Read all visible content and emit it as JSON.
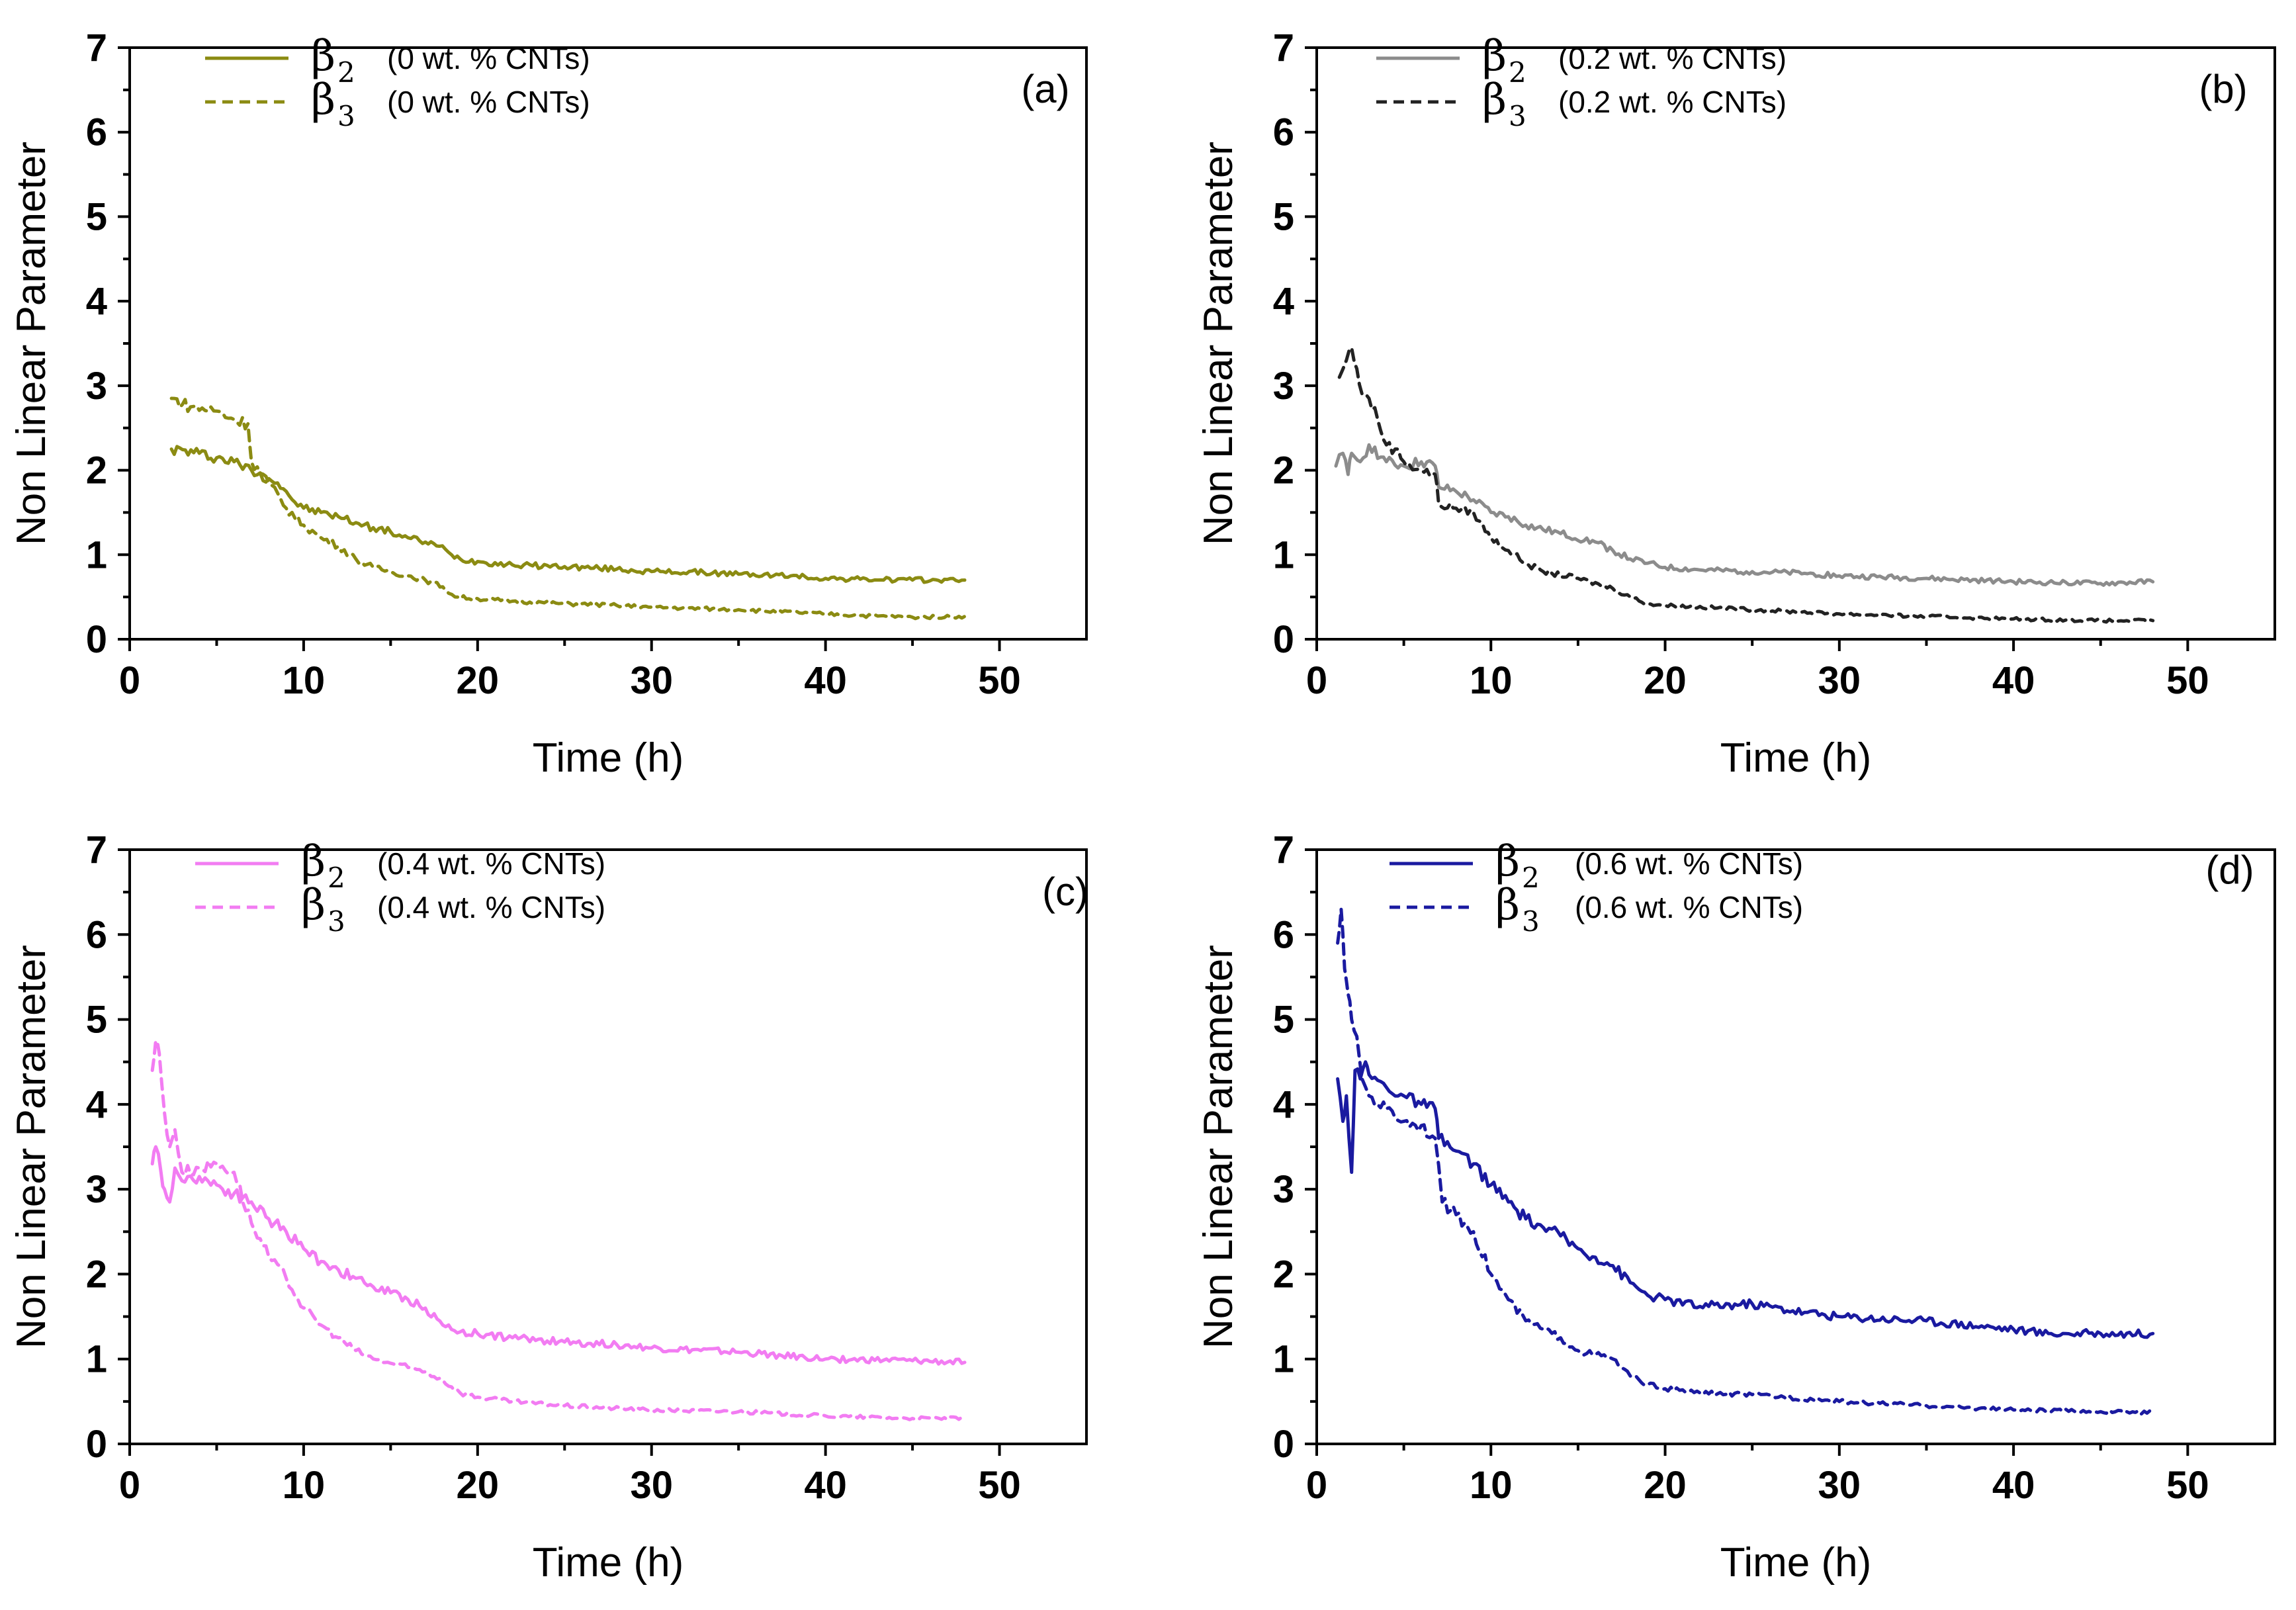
{
  "chart_data": [
    {
      "type": "line",
      "panel_label": "(a)",
      "xlabel": "Time (h)",
      "ylabel": "Non Linear Parameter",
      "xlim": [
        0,
        55
      ],
      "ylim": [
        0,
        7
      ],
      "xticks": [
        0,
        10,
        20,
        30,
        40,
        50
      ],
      "yticks": [
        0,
        1,
        2,
        3,
        4,
        5,
        6,
        7
      ],
      "xtick_labels": [
        "0",
        "10",
        "20",
        "30",
        "40",
        "50"
      ],
      "ytick_labels": [
        "0",
        "1",
        "2",
        "3",
        "4",
        "5",
        "6",
        "7"
      ],
      "color": "#8b8b12",
      "series": [
        {
          "name": "β2",
          "beta": "β",
          "sub": "2",
          "condition": "(0 wt. % CNTs)",
          "dash": "solid",
          "x": [
            2.4,
            4,
            6,
            7,
            8,
            8.5,
            9,
            9.5,
            10,
            11,
            12,
            13,
            14,
            15,
            16,
            17,
            17.8,
            18.5,
            19,
            20,
            22,
            25,
            28,
            30,
            33,
            35,
            38,
            40,
            42,
            45,
            48
          ],
          "y": [
            2.25,
            2.2,
            2.1,
            2.0,
            1.9,
            1.85,
            1.75,
            1.62,
            1.55,
            1.5,
            1.45,
            1.38,
            1.32,
            1.27,
            1.2,
            1.15,
            1.1,
            1.0,
            0.95,
            0.92,
            0.88,
            0.86,
            0.83,
            0.8,
            0.79,
            0.77,
            0.75,
            0.72,
            0.71,
            0.7,
            0.7
          ]
        },
        {
          "name": "β3",
          "beta": "β",
          "sub": "3",
          "condition": "(0 wt. % CNTs)",
          "dash": "dashed",
          "x": [
            2.4,
            3.5,
            5,
            6,
            6.8,
            7,
            8,
            9,
            10,
            11,
            12,
            13,
            14,
            15,
            16,
            17,
            18,
            18.7,
            20,
            22,
            25,
            28,
            30,
            35,
            40,
            42,
            45,
            48
          ],
          "y": [
            2.85,
            2.75,
            2.7,
            2.6,
            2.55,
            2.1,
            1.85,
            1.55,
            1.35,
            1.2,
            1.1,
            0.95,
            0.85,
            0.8,
            0.75,
            0.7,
            0.62,
            0.5,
            0.48,
            0.45,
            0.42,
            0.4,
            0.38,
            0.35,
            0.3,
            0.28,
            0.26,
            0.27
          ]
        }
      ]
    },
    {
      "type": "line",
      "panel_label": "(b)",
      "xlabel": "Time (h)",
      "ylabel": "Non Linear Parameter",
      "xlim": [
        0,
        55
      ],
      "ylim": [
        0,
        7
      ],
      "xticks": [
        0,
        10,
        20,
        30,
        40,
        50
      ],
      "yticks": [
        0,
        1,
        2,
        3,
        4,
        5,
        6,
        7
      ],
      "xtick_labels": [
        "0",
        "10",
        "20",
        "30",
        "40",
        "50"
      ],
      "ytick_labels": [
        "0",
        "1",
        "2",
        "3",
        "4",
        "5",
        "6",
        "7"
      ],
      "series": [
        {
          "name": "β2",
          "beta": "β",
          "sub": "2",
          "condition": "(0.2 wt. % CNTs)",
          "dash": "solid",
          "color": "#8c8c8c",
          "x": [
            1.1,
            1.5,
            1.8,
            2,
            2.5,
            3,
            4,
            5,
            6,
            6.8,
            7,
            8,
            9,
            10,
            11,
            12,
            14,
            16,
            17,
            18,
            19,
            20,
            22,
            25,
            28,
            30,
            35,
            40,
            42,
            45,
            48
          ],
          "y": [
            2.05,
            2.2,
            1.95,
            2.2,
            2.1,
            2.3,
            2.1,
            2.05,
            2.1,
            2.05,
            1.8,
            1.75,
            1.65,
            1.5,
            1.45,
            1.35,
            1.25,
            1.15,
            1.05,
            0.95,
            0.9,
            0.85,
            0.82,
            0.8,
            0.78,
            0.75,
            0.72,
            0.68,
            0.67,
            0.66,
            0.68
          ]
        },
        {
          "name": "β3",
          "beta": "β",
          "sub": "3",
          "condition": "(0.2 wt. % CNTs)",
          "dash": "dashed",
          "color": "#222222",
          "x": [
            1.3,
            1.7,
            2,
            2.3,
            2.6,
            3,
            3.5,
            4,
            4.5,
            5,
            6,
            6.8,
            7,
            8,
            9,
            10,
            11,
            12,
            13,
            15,
            17,
            18,
            19,
            20,
            25,
            30,
            35,
            40,
            45,
            48
          ],
          "y": [
            3.1,
            3.3,
            3.45,
            3.2,
            2.9,
            2.85,
            2.6,
            2.3,
            2.25,
            2.1,
            2.0,
            1.95,
            1.6,
            1.55,
            1.5,
            1.2,
            1.05,
            0.9,
            0.8,
            0.72,
            0.6,
            0.5,
            0.42,
            0.4,
            0.35,
            0.3,
            0.27,
            0.24,
            0.22,
            0.22
          ]
        }
      ]
    },
    {
      "type": "line",
      "panel_label": "(c)",
      "xlabel": "Time (h)",
      "ylabel": "Non Linear Parameter",
      "xlim": [
        0,
        55
      ],
      "ylim": [
        0,
        7
      ],
      "xticks": [
        0,
        10,
        20,
        30,
        40,
        50
      ],
      "yticks": [
        0,
        1,
        2,
        3,
        4,
        5,
        6,
        7
      ],
      "xtick_labels": [
        "0",
        "10",
        "20",
        "30",
        "40",
        "50"
      ],
      "ytick_labels": [
        "0",
        "1",
        "2",
        "3",
        "4",
        "5",
        "6",
        "7"
      ],
      "color": "#f27cf2",
      "series": [
        {
          "name": "β2",
          "beta": "β",
          "sub": "2",
          "condition": "(0.4 wt. % CNTs)",
          "dash": "solid",
          "x": [
            1.3,
            1.5,
            1.8,
            2,
            2.3,
            2.6,
            3,
            4,
            5,
            6,
            7,
            8,
            9,
            10,
            11,
            12,
            13,
            14,
            15,
            16,
            17,
            18,
            19,
            20,
            22,
            25,
            28,
            30,
            35,
            40,
            45,
            48
          ],
          "y": [
            3.3,
            3.5,
            3.2,
            3.0,
            2.85,
            3.25,
            3.1,
            3.15,
            3.05,
            2.95,
            2.85,
            2.65,
            2.5,
            2.3,
            2.15,
            2.05,
            1.95,
            1.85,
            1.78,
            1.7,
            1.6,
            1.4,
            1.32,
            1.3,
            1.25,
            1.2,
            1.17,
            1.13,
            1.08,
            1.0,
            0.98,
            0.96
          ]
        },
        {
          "name": "β3",
          "beta": "β",
          "sub": "3",
          "condition": "(0.4 wt. % CNTs)",
          "dash": "dashed",
          "x": [
            1.3,
            1.5,
            1.7,
            2,
            2.3,
            2.6,
            3,
            4,
            5,
            6,
            7,
            8,
            9,
            10,
            11,
            12,
            13,
            14,
            15,
            16,
            17,
            18,
            19,
            20,
            22,
            25,
            30,
            35,
            40,
            45,
            48
          ],
          "y": [
            4.4,
            4.75,
            4.6,
            3.9,
            3.5,
            3.7,
            3.2,
            3.25,
            3.3,
            3.2,
            2.6,
            2.2,
            1.95,
            1.6,
            1.4,
            1.25,
            1.1,
            1.0,
            0.95,
            0.9,
            0.85,
            0.75,
            0.6,
            0.55,
            0.5,
            0.45,
            0.4,
            0.38,
            0.33,
            0.3,
            0.3
          ]
        }
      ]
    },
    {
      "type": "line",
      "panel_label": "(d)",
      "xlabel": "Time (h)",
      "ylabel": "Non Linear Parameter",
      "xlim": [
        0,
        55
      ],
      "ylim": [
        0,
        7
      ],
      "xticks": [
        0,
        10,
        20,
        30,
        40,
        50
      ],
      "yticks": [
        0,
        1,
        2,
        3,
        4,
        5,
        6,
        7
      ],
      "xtick_labels": [
        "0",
        "10",
        "20",
        "30",
        "40",
        "50"
      ],
      "ytick_labels": [
        "0",
        "1",
        "2",
        "3",
        "4",
        "5",
        "6",
        "7"
      ],
      "color": "#1a1aa0",
      "series": [
        {
          "name": "β2",
          "beta": "β",
          "sub": "2",
          "condition": "(0.6 wt. % CNTs)",
          "dash": "solid",
          "x": [
            1.2,
            1.5,
            1.7,
            2,
            2.2,
            2.5,
            2.8,
            3,
            4,
            5,
            6,
            6.8,
            7,
            8,
            9,
            10,
            11,
            12,
            13,
            14,
            15,
            16,
            17,
            18,
            19,
            20,
            22,
            25,
            28,
            30,
            35,
            40,
            42,
            45,
            48
          ],
          "y": [
            4.3,
            3.8,
            4.1,
            3.2,
            4.4,
            4.3,
            4.5,
            4.35,
            4.2,
            4.1,
            4.0,
            3.95,
            3.6,
            3.45,
            3.3,
            3.05,
            2.85,
            2.65,
            2.55,
            2.45,
            2.3,
            2.2,
            2.1,
            1.9,
            1.75,
            1.7,
            1.62,
            1.65,
            1.55,
            1.5,
            1.45,
            1.35,
            1.3,
            1.3,
            1.3
          ]
        },
        {
          "name": "β3",
          "beta": "β",
          "sub": "3",
          "condition": "(0.6 wt. % CNTs)",
          "dash": "dashed",
          "x": [
            1.2,
            1.4,
            1.6,
            1.8,
            2,
            2.3,
            2.6,
            3,
            4,
            5,
            6,
            6.8,
            7.2,
            8,
            9,
            10,
            11,
            12,
            13,
            14,
            15,
            16,
            17,
            18,
            19,
            20,
            22,
            25,
            30,
            35,
            40,
            45,
            48
          ],
          "y": [
            5.9,
            6.3,
            5.6,
            5.3,
            5.0,
            4.8,
            4.3,
            4.1,
            3.95,
            3.8,
            3.75,
            3.6,
            2.85,
            2.7,
            2.5,
            2.0,
            1.7,
            1.45,
            1.35,
            1.25,
            1.1,
            1.05,
            1.0,
            0.8,
            0.7,
            0.65,
            0.6,
            0.58,
            0.5,
            0.45,
            0.4,
            0.38,
            0.37
          ]
        }
      ]
    }
  ]
}
